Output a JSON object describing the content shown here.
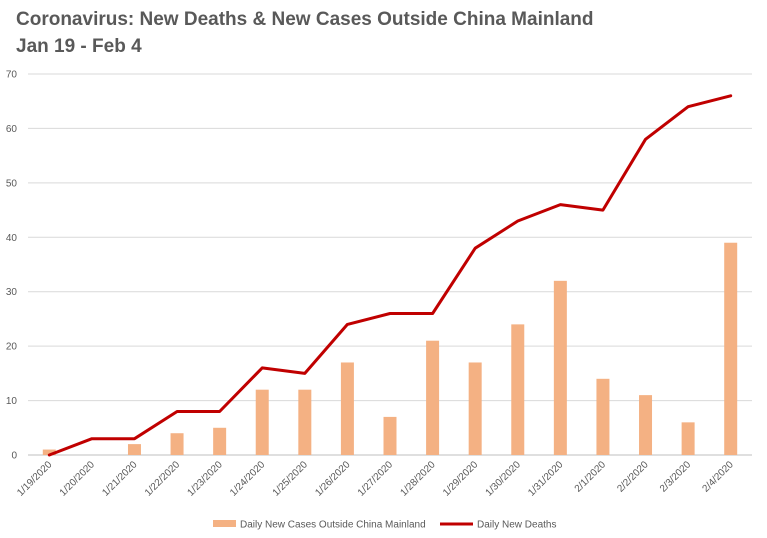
{
  "chart_data": {
    "type": "bar+line",
    "title_line1": "Coronavirus: New Deaths & New Cases Outside China Mainland",
    "title_line2": "Jan 19 - Feb 4",
    "categories": [
      "1/19/2020",
      "1/20/2020",
      "1/21/2020",
      "1/22/2020",
      "1/23/2020",
      "1/24/2020",
      "1/25/2020",
      "1/26/2020",
      "1/27/2020",
      "1/28/2020",
      "1/29/2020",
      "1/30/2020",
      "1/31/2020",
      "2/1/2020",
      "2/2/2020",
      "2/3/2020",
      "2/4/2020"
    ],
    "series": [
      {
        "name": "Daily New Cases Outside China Mainland",
        "type": "bar",
        "color": "#F4B183",
        "values": [
          1,
          0,
          2,
          4,
          5,
          12,
          12,
          17,
          7,
          21,
          17,
          24,
          32,
          14,
          11,
          6,
          39
        ]
      },
      {
        "name": "Daily New Deaths",
        "type": "line",
        "color": "#C00000",
        "values": [
          0,
          3,
          3,
          8,
          8,
          16,
          15,
          24,
          26,
          26,
          38,
          43,
          46,
          45,
          58,
          64,
          66
        ]
      }
    ],
    "yticks": [
      0,
      10,
      20,
      30,
      40,
      50,
      60,
      70
    ],
    "ylim": [
      0,
      70
    ],
    "xlabel": "",
    "ylabel": "",
    "grid": true,
    "legend_position": "bottom"
  }
}
